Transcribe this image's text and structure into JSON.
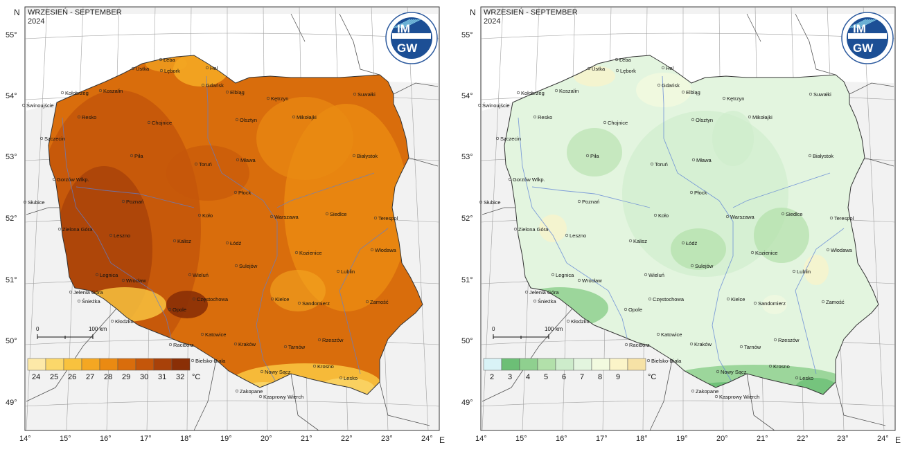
{
  "panels": [
    {
      "title_pl": "WRZESIEŃ - SEPTEMBER",
      "year": "2024",
      "palette": "temperature",
      "legend": {
        "labels": [
          "24",
          "25",
          "26",
          "27",
          "28",
          "29",
          "30",
          "31",
          "32"
        ],
        "unit": "°C",
        "colors": [
          "#fde9a8",
          "#fbd76a",
          "#f8c23e",
          "#f4a722",
          "#ea8a12",
          "#d96d0c",
          "#c4560a",
          "#a84109",
          "#8a2f06"
        ]
      }
    },
    {
      "title_pl": "WRZESIEŃ - SEPTEMBER",
      "year": "2024",
      "palette": "days",
      "legend": {
        "labels": [
          "2",
          "3",
          "4",
          "5",
          "6",
          "7",
          "8",
          "9"
        ],
        "unit": "°C",
        "colors": [
          "#d9f3f7",
          "#6cbf76",
          "#8fd08f",
          "#b2e0aa",
          "#cdeccb",
          "#e3f5df",
          "#f2fadf",
          "#fbf4c8",
          "#f6e2a6"
        ]
      }
    }
  ],
  "axes": {
    "lon_labels": [
      "14°",
      "15°",
      "16°",
      "17°",
      "18°",
      "19°",
      "20°",
      "21°",
      "22°",
      "23°",
      "24°"
    ],
    "lat_labels": [
      "55°",
      "54°",
      "53°",
      "52°",
      "51°",
      "50°",
      "49°"
    ],
    "north": "N",
    "east": "E"
  },
  "scale_bar": {
    "start": "0",
    "end": "100 km"
  },
  "logo": {
    "text": "IMGW"
  },
  "cities": [
    {
      "name": "Łeba"
    },
    {
      "name": "Ustka"
    },
    {
      "name": "Lębork"
    },
    {
      "name": "Hel"
    },
    {
      "name": "Kołobrzeg"
    },
    {
      "name": "Koszalin"
    },
    {
      "name": "Gdańsk"
    },
    {
      "name": "Elbląg"
    },
    {
      "name": "Świnoujście"
    },
    {
      "name": "Kętrzyn"
    },
    {
      "name": "Suwałki"
    },
    {
      "name": "Resko"
    },
    {
      "name": "Chojnice"
    },
    {
      "name": "Olsztyn"
    },
    {
      "name": "Mikołajki"
    },
    {
      "name": "Szczecin"
    },
    {
      "name": "Piła"
    },
    {
      "name": "Toruń"
    },
    {
      "name": "Mława"
    },
    {
      "name": "Białystok"
    },
    {
      "name": "Gorzów Wlkp."
    },
    {
      "name": "Płock"
    },
    {
      "name": "Słubice"
    },
    {
      "name": "Poznań"
    },
    {
      "name": "Siedlce"
    },
    {
      "name": "Terespol"
    },
    {
      "name": "Koło"
    },
    {
      "name": "Warszawa"
    },
    {
      "name": "Zielona Góra"
    },
    {
      "name": "Leszno"
    },
    {
      "name": "Kalisz"
    },
    {
      "name": "Łódź"
    },
    {
      "name": "Włodawa"
    },
    {
      "name": "Kozienice"
    },
    {
      "name": "Sulejów"
    },
    {
      "name": "Legnica"
    },
    {
      "name": "Wrocław"
    },
    {
      "name": "Wieluń"
    },
    {
      "name": "Lublin"
    },
    {
      "name": "Jelenia Góra"
    },
    {
      "name": "Śnieżka"
    },
    {
      "name": "Częstochowa"
    },
    {
      "name": "Kielce"
    },
    {
      "name": "Sandomierz"
    },
    {
      "name": "Zamość"
    },
    {
      "name": "Kłodzko"
    },
    {
      "name": "Opole"
    },
    {
      "name": "Katowice"
    },
    {
      "name": "Racibórz"
    },
    {
      "name": "Kraków"
    },
    {
      "name": "Tarnów"
    },
    {
      "name": "Rzeszów"
    },
    {
      "name": "Bielsko-Biała"
    },
    {
      "name": "Krosno"
    },
    {
      "name": "Nowy Sącz"
    },
    {
      "name": "Lesko"
    },
    {
      "name": "Zakopane"
    },
    {
      "name": "Kasprowy Wierch"
    }
  ]
}
